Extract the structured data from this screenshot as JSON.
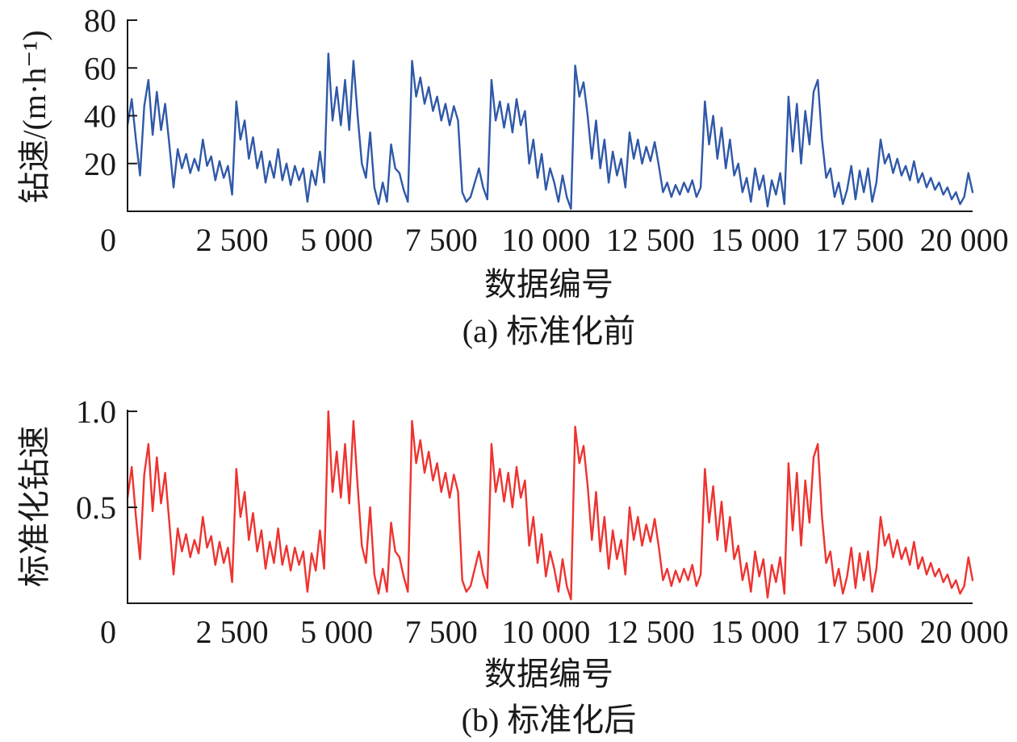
{
  "chart_data": [
    {
      "type": "line",
      "caption": "(a) 标准化前",
      "xlabel": "数据编号",
      "ylabel": "钻速/(m·h⁻¹)",
      "xlim": [
        0,
        20200
      ],
      "ylim": [
        0,
        80
      ],
      "xticks": [
        0,
        2500,
        5000,
        7500,
        10000,
        12500,
        15000,
        17500,
        20000
      ],
      "xtick_labels": [
        "0",
        "2 500",
        "5 000",
        "7 500",
        "10 000",
        "12 500",
        "15 000",
        "17 500",
        "20 000"
      ],
      "yticks": [
        20,
        40,
        60,
        80
      ],
      "ytick_labels": [
        "20",
        "40",
        "60",
        "80"
      ],
      "grid": false,
      "color": "#2f58a8",
      "x": [
        0,
        100,
        200,
        300,
        400,
        500,
        600,
        700,
        800,
        900,
        1000,
        1100,
        1200,
        1300,
        1400,
        1500,
        1600,
        1700,
        1800,
        1900,
        2000,
        2100,
        2200,
        2300,
        2400,
        2500,
        2600,
        2700,
        2800,
        2900,
        3000,
        3100,
        3200,
        3300,
        3400,
        3500,
        3600,
        3700,
        3800,
        3900,
        4000,
        4100,
        4200,
        4300,
        4400,
        4500,
        4600,
        4700,
        4800,
        4900,
        5000,
        5100,
        5200,
        5300,
        5400,
        5500,
        5600,
        5700,
        5800,
        5900,
        6000,
        6100,
        6200,
        6300,
        6400,
        6500,
        6600,
        6700,
        6800,
        6900,
        7000,
        7100,
        7200,
        7300,
        7400,
        7500,
        7600,
        7700,
        7800,
        7900,
        8000,
        8100,
        8200,
        8300,
        8400,
        8500,
        8600,
        8700,
        8800,
        8900,
        9000,
        9100,
        9200,
        9300,
        9400,
        9500,
        9600,
        9700,
        9800,
        9900,
        10000,
        10100,
        10200,
        10300,
        10400,
        10500,
        10600,
        10700,
        10800,
        10900,
        11000,
        11100,
        11200,
        11300,
        11400,
        11500,
        11600,
        11700,
        11800,
        11900,
        12000,
        12100,
        12200,
        12300,
        12400,
        12500,
        12600,
        12700,
        12800,
        12900,
        13000,
        13100,
        13200,
        13300,
        13400,
        13500,
        13600,
        13700,
        13800,
        13900,
        14000,
        14100,
        14200,
        14300,
        14400,
        14500,
        14600,
        14700,
        14800,
        14900,
        15000,
        15100,
        15200,
        15300,
        15400,
        15500,
        15600,
        15700,
        15800,
        15900,
        16000,
        16100,
        16200,
        16300,
        16400,
        16500,
        16600,
        16700,
        16800,
        16900,
        17000,
        17100,
        17200,
        17300,
        17400,
        17500,
        17600,
        17700,
        17800,
        17900,
        18000,
        18100,
        18200,
        18300,
        18400,
        18500,
        18600,
        18700,
        18800,
        18900,
        19000,
        19100,
        19200,
        19300,
        19400,
        19500,
        19600,
        19700,
        19800,
        19900,
        20000,
        20100,
        20200
      ],
      "y": [
        36,
        47,
        30,
        15,
        44,
        55,
        32,
        50,
        34,
        45,
        28,
        10,
        26,
        18,
        24,
        16,
        22,
        17,
        30,
        19,
        23,
        13,
        21,
        14,
        19,
        7,
        46,
        30,
        38,
        22,
        31,
        18,
        25,
        12,
        21,
        14,
        26,
        13,
        20,
        11,
        19,
        13,
        18,
        4,
        17,
        11,
        25,
        12,
        66,
        38,
        52,
        36,
        55,
        34,
        63,
        40,
        20,
        14,
        33,
        10,
        3,
        12,
        4,
        28,
        18,
        16,
        9,
        4,
        63,
        48,
        56,
        45,
        52,
        42,
        48,
        38,
        45,
        36,
        44,
        38,
        8,
        4,
        6,
        12,
        18,
        10,
        5,
        55,
        38,
        46,
        35,
        45,
        33,
        47,
        36,
        42,
        20,
        30,
        14,
        24,
        9,
        18,
        12,
        4,
        15,
        6,
        1,
        61,
        48,
        54,
        40,
        22,
        38,
        18,
        30,
        12,
        25,
        15,
        22,
        10,
        33,
        22,
        30,
        20,
        27,
        21,
        29,
        19,
        8,
        12,
        6,
        11,
        7,
        12,
        8,
        13,
        6,
        10,
        46,
        28,
        40,
        22,
        35,
        18,
        30,
        15,
        20,
        8,
        14,
        4,
        18,
        9,
        15,
        2,
        13,
        7,
        16,
        3,
        48,
        25,
        45,
        20,
        42,
        28,
        50,
        55,
        30,
        14,
        18,
        6,
        12,
        3,
        9,
        19,
        5,
        17,
        8,
        18,
        4,
        12,
        30,
        20,
        24,
        16,
        22,
        15,
        19,
        13,
        21,
        12,
        16,
        10,
        14,
        9,
        12,
        7,
        10,
        5,
        8,
        3,
        6,
        16,
        8
      ]
    },
    {
      "type": "line",
      "caption": "(b) 标准化后",
      "xlabel": "数据编号",
      "ylabel": "标准化钻速",
      "xlim": [
        0,
        20200
      ],
      "ylim": [
        0,
        1
      ],
      "xticks": [
        0,
        2500,
        5000,
        7500,
        10000,
        12500,
        15000,
        17500,
        20000
      ],
      "xtick_labels": [
        "0",
        "2 500",
        "5 000",
        "7 500",
        "10 000",
        "12 500",
        "15 000",
        "17 500",
        "20 000"
      ],
      "yticks": [
        0.5,
        1.0
      ],
      "ytick_labels": [
        "0.5",
        "1.0"
      ],
      "grid": false,
      "color": "#ee3330",
      "x": [
        0,
        100,
        200,
        300,
        400,
        500,
        600,
        700,
        800,
        900,
        1000,
        1100,
        1200,
        1300,
        1400,
        1500,
        1600,
        1700,
        1800,
        1900,
        2000,
        2100,
        2200,
        2300,
        2400,
        2500,
        2600,
        2700,
        2800,
        2900,
        3000,
        3100,
        3200,
        3300,
        3400,
        3500,
        3600,
        3700,
        3800,
        3900,
        4000,
        4100,
        4200,
        4300,
        4400,
        4500,
        4600,
        4700,
        4800,
        4900,
        5000,
        5100,
        5200,
        5300,
        5400,
        5500,
        5600,
        5700,
        5800,
        5900,
        6000,
        6100,
        6200,
        6300,
        6400,
        6500,
        6600,
        6700,
        6800,
        6900,
        7000,
        7100,
        7200,
        7300,
        7400,
        7500,
        7600,
        7700,
        7800,
        7900,
        8000,
        8100,
        8200,
        8300,
        8400,
        8500,
        8600,
        8700,
        8800,
        8900,
        9000,
        9100,
        9200,
        9300,
        9400,
        9500,
        9600,
        9700,
        9800,
        9900,
        10000,
        10100,
        10200,
        10300,
        10400,
        10500,
        10600,
        10700,
        10800,
        10900,
        11000,
        11100,
        11200,
        11300,
        11400,
        11500,
        11600,
        11700,
        11800,
        11900,
        12000,
        12100,
        12200,
        12300,
        12400,
        12500,
        12600,
        12700,
        12800,
        12900,
        13000,
        13100,
        13200,
        13300,
        13400,
        13500,
        13600,
        13700,
        13800,
        13900,
        14000,
        14100,
        14200,
        14300,
        14400,
        14500,
        14600,
        14700,
        14800,
        14900,
        15000,
        15100,
        15200,
        15300,
        15400,
        15500,
        15600,
        15700,
        15800,
        15900,
        16000,
        16100,
        16200,
        16300,
        16400,
        16500,
        16600,
        16700,
        16800,
        16900,
        17000,
        17100,
        17200,
        17300,
        17400,
        17500,
        17600,
        17700,
        17800,
        17900,
        18000,
        18100,
        18200,
        18300,
        18400,
        18500,
        18600,
        18700,
        18800,
        18900,
        19000,
        19100,
        19200,
        19300,
        19400,
        19500,
        19600,
        19700,
        19800,
        19900,
        20000,
        20100,
        20200
      ],
      "y": [
        0.55,
        0.71,
        0.45,
        0.23,
        0.67,
        0.83,
        0.48,
        0.76,
        0.52,
        0.68,
        0.42,
        0.15,
        0.39,
        0.27,
        0.36,
        0.24,
        0.33,
        0.26,
        0.45,
        0.29,
        0.35,
        0.2,
        0.32,
        0.21,
        0.29,
        0.11,
        0.7,
        0.45,
        0.58,
        0.33,
        0.47,
        0.27,
        0.38,
        0.18,
        0.32,
        0.21,
        0.39,
        0.2,
        0.3,
        0.17,
        0.29,
        0.2,
        0.27,
        0.06,
        0.26,
        0.17,
        0.38,
        0.18,
        1.0,
        0.58,
        0.79,
        0.55,
        0.83,
        0.52,
        0.95,
        0.61,
        0.3,
        0.21,
        0.5,
        0.15,
        0.05,
        0.18,
        0.06,
        0.42,
        0.27,
        0.24,
        0.14,
        0.06,
        0.95,
        0.73,
        0.85,
        0.68,
        0.79,
        0.64,
        0.73,
        0.58,
        0.68,
        0.55,
        0.67,
        0.58,
        0.12,
        0.06,
        0.09,
        0.18,
        0.27,
        0.15,
        0.08,
        0.83,
        0.58,
        0.7,
        0.53,
        0.68,
        0.5,
        0.71,
        0.55,
        0.64,
        0.3,
        0.45,
        0.21,
        0.36,
        0.14,
        0.27,
        0.18,
        0.06,
        0.23,
        0.09,
        0.02,
        0.92,
        0.73,
        0.82,
        0.61,
        0.33,
        0.58,
        0.27,
        0.45,
        0.18,
        0.38,
        0.23,
        0.33,
        0.15,
        0.5,
        0.33,
        0.45,
        0.3,
        0.41,
        0.32,
        0.44,
        0.29,
        0.12,
        0.18,
        0.09,
        0.17,
        0.11,
        0.18,
        0.12,
        0.2,
        0.09,
        0.15,
        0.7,
        0.42,
        0.61,
        0.33,
        0.53,
        0.27,
        0.45,
        0.23,
        0.3,
        0.12,
        0.21,
        0.06,
        0.27,
        0.14,
        0.23,
        0.03,
        0.2,
        0.11,
        0.24,
        0.05,
        0.73,
        0.38,
        0.68,
        0.3,
        0.64,
        0.42,
        0.76,
        0.83,
        0.45,
        0.21,
        0.27,
        0.09,
        0.18,
        0.05,
        0.14,
        0.29,
        0.08,
        0.26,
        0.12,
        0.27,
        0.06,
        0.18,
        0.45,
        0.3,
        0.36,
        0.24,
        0.33,
        0.23,
        0.29,
        0.2,
        0.32,
        0.18,
        0.24,
        0.15,
        0.21,
        0.14,
        0.18,
        0.11,
        0.15,
        0.08,
        0.12,
        0.05,
        0.09,
        0.24,
        0.12
      ]
    }
  ]
}
